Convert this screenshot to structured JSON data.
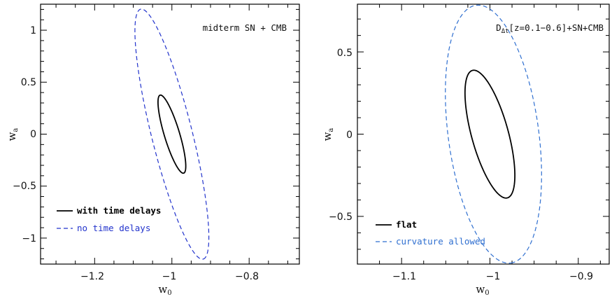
{
  "chart_data": [
    {
      "type": "line",
      "title": "",
      "xlabel": "w0",
      "ylabel": "wa",
      "xlim": [
        -1.34,
        -0.67
      ],
      "ylim": [
        -1.25,
        1.25
      ],
      "x_ticks": [
        -1.2,
        -1.0,
        -0.8
      ],
      "x_tick_labels": [
        "−1.2",
        "−1",
        "−0.8"
      ],
      "y_ticks": [
        1,
        0.5,
        0,
        -0.5,
        -1
      ],
      "y_tick_labels": [
        "1",
        "0.5",
        "0",
        "−0.5",
        "−1"
      ],
      "annotation": "midterm SN + CMB",
      "legend_position": "bottom-left",
      "series": [
        {
          "name": "with time delays",
          "style": "solid",
          "color": "#000000",
          "ellipse": {
            "center": [
              -1.0,
              0.0
            ],
            "semi_major": 0.3921,
            "semi_minor": 0.0198,
            "tilt_deg": -73.1
          }
        },
        {
          "name": "no time delays",
          "style": "dashed",
          "color": "#2233cc",
          "ellipse": {
            "center": [
              -1.0,
              0.0
            ],
            "semi_major": 1.2395,
            "semi_minor": 0.0527,
            "tilt_deg": -75.9
          }
        }
      ],
      "grid": false
    },
    {
      "type": "line",
      "title": "",
      "xlabel": "w0",
      "ylabel": "wa",
      "xlim": [
        -1.15,
        -0.865
      ],
      "ylim": [
        -0.79,
        0.79
      ],
      "x_ticks": [
        -1.1,
        -1.0,
        -0.9
      ],
      "x_tick_labels": [
        "−1.1",
        "−1",
        "−0.9"
      ],
      "y_ticks": [
        0.5,
        0,
        -0.5
      ],
      "y_tick_labels": [
        "0.5",
        "0",
        "−0.5"
      ],
      "annotation_parts": [
        "D",
        "Δt",
        "[z=0.1−0.6]+SN+CMB"
      ],
      "legend_position": "bottom-left",
      "series": [
        {
          "name": "flat",
          "style": "solid",
          "color": "#000000",
          "ellipse": {
            "center": [
              -1.0,
              0.0
            ],
            "semi_major": 0.4027,
            "semi_minor": 0.0208,
            "tilt_deg": -74.1
          }
        },
        {
          "name": "curvature allowed",
          "style": "dashed",
          "color": "#2f6fd0",
          "ellipse": {
            "center": [
              -0.996,
              0.0
            ],
            "semi_major": 0.791,
            "semi_minor": 0.0512,
            "tilt_deg": -82.0
          }
        }
      ],
      "grid": false
    }
  ]
}
